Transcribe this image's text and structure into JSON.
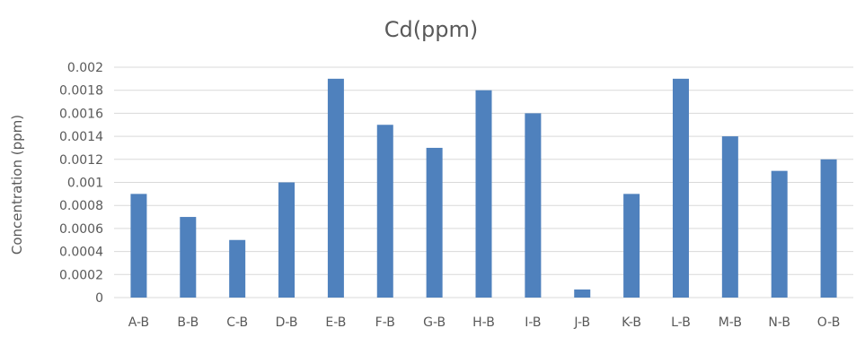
{
  "chart_data": {
    "type": "bar",
    "title": "Cd(ppm)",
    "xlabel": "",
    "ylabel": "Concentration (ppm)",
    "categories": [
      "A-B",
      "B-B",
      "C-B",
      "D-B",
      "E-B",
      "F-B",
      "G-B",
      "H-B",
      "I-B",
      "J-B",
      "K-B",
      "L-B",
      "M-B",
      "N-B",
      "O-B"
    ],
    "values": [
      0.0009,
      0.0007,
      0.0005,
      0.001,
      0.0019,
      0.0015,
      0.0013,
      0.0018,
      0.0016,
      7e-05,
      0.0009,
      0.0019,
      0.0014,
      0.0011,
      0.0012
    ],
    "ylim": [
      0,
      0.002
    ],
    "yticks": [
      "0",
      "0.0002",
      "0.0004",
      "0.0006",
      "0.0008",
      "0.001",
      "0.0012",
      "0.0014",
      "0.0016",
      "0.0018",
      "0.002"
    ],
    "grid": true,
    "legend": "none",
    "colors": {
      "bar": "#4f81bd",
      "grid": "#d9d9d9",
      "text": "#595959"
    }
  }
}
